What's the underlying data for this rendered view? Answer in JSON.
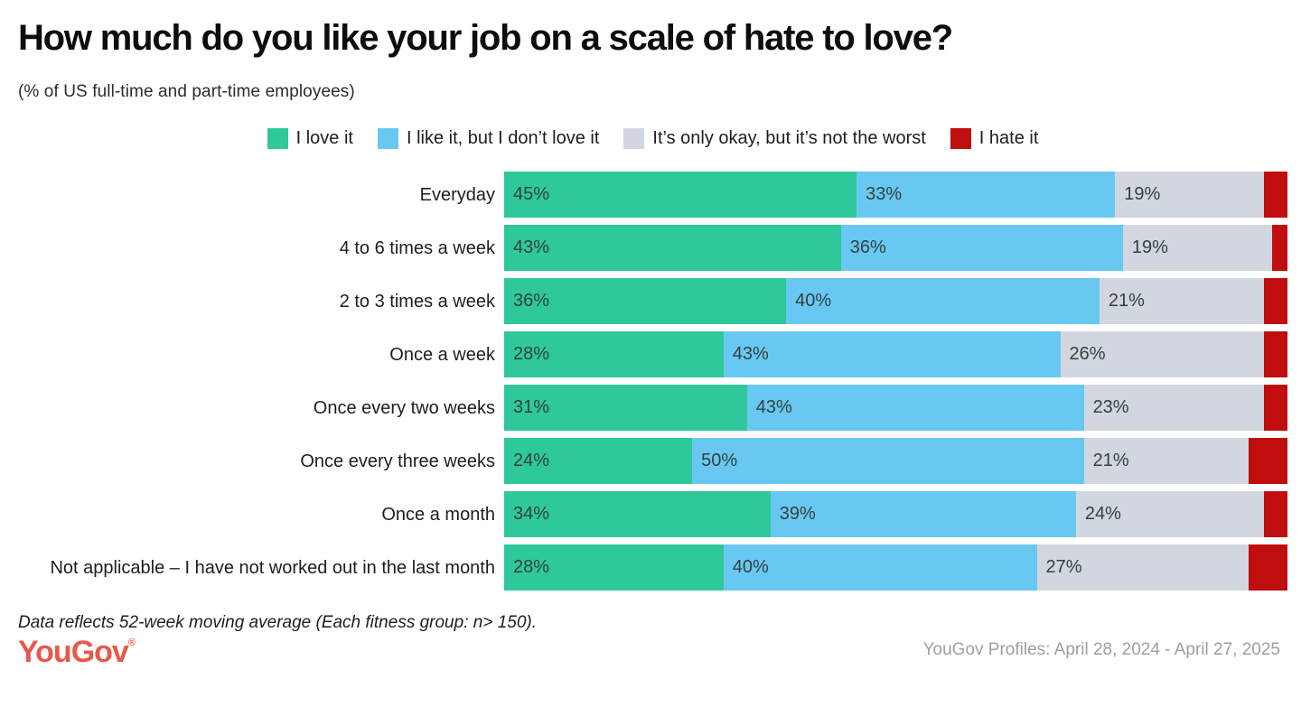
{
  "chart_data": {
    "type": "bar",
    "variant": "horizontal-stacked",
    "title": "How much do you like your job on a scale of hate to love?",
    "subtitle": "(% of US full-time and part-time employees)",
    "value_suffix": "%",
    "legend_position": "top-center",
    "axis_range": [
      0,
      100
    ],
    "grid": false,
    "categories": [
      "Everyday",
      "4 to 6 times a week",
      "2 to 3 times a week",
      "Once a week",
      "Once every two weeks",
      "Once every three weeks",
      "Once a month",
      "Not applicable – I have not worked out in the last month"
    ],
    "series": [
      {
        "name": "I love it",
        "color": "#2ec89b",
        "show_value_labels": true,
        "values": [
          45,
          43,
          36,
          28,
          31,
          24,
          34,
          28
        ]
      },
      {
        "name": "I like it, but I don’t love it",
        "color": "#69c8f2",
        "show_value_labels": true,
        "values": [
          33,
          36,
          40,
          43,
          43,
          50,
          39,
          40
        ]
      },
      {
        "name": "It’s only okay, but it’s not the worst",
        "color": "#d2d6de",
        "show_value_labels": true,
        "values": [
          19,
          19,
          21,
          26,
          23,
          21,
          24,
          27
        ]
      },
      {
        "name": "I hate it",
        "color": "#c00d0d",
        "show_value_labels": false,
        "values": [
          3,
          2,
          3,
          3,
          3,
          5,
          3,
          5
        ]
      }
    ]
  },
  "footer": {
    "note": "Data reflects 52-week moving average (Each fitness group: n> 150).",
    "logo_text": "YouGov",
    "logo_mark": "®",
    "source": "YouGov Profiles: April 28, 2024 - April 27, 2025"
  }
}
